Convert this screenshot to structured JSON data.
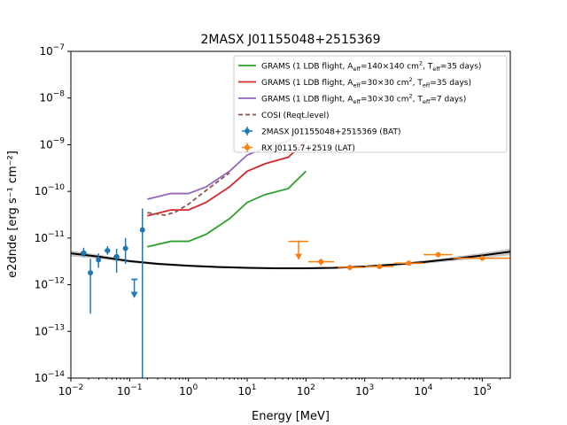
{
  "chart_data": {
    "type": "scatter",
    "title": "2MASX J01155048+2515369",
    "xlabel": "Energy [MeV]",
    "ylabel": "e2dnde [erg s⁻¹ cm⁻²]",
    "xscale": "log",
    "yscale": "log",
    "xlim": [
      0.01,
      300000
    ],
    "ylim": [
      1e-14,
      1e-07
    ],
    "grid": false,
    "legend_position": "top-right",
    "x_ticks": [
      {
        "value": 0.01,
        "base": "10",
        "exp": "−2"
      },
      {
        "value": 0.1,
        "base": "10",
        "exp": "−1"
      },
      {
        "value": 1,
        "base": "10",
        "exp": "0"
      },
      {
        "value": 10,
        "base": "10",
        "exp": "1"
      },
      {
        "value": 100,
        "base": "10",
        "exp": "2"
      },
      {
        "value": 1000,
        "base": "10",
        "exp": "3"
      },
      {
        "value": 10000,
        "base": "10",
        "exp": "4"
      },
      {
        "value": 100000,
        "base": "10",
        "exp": "5"
      }
    ],
    "y_ticks": [
      {
        "value": 1e-14,
        "base": "10",
        "exp": "−14"
      },
      {
        "value": 1e-13,
        "base": "10",
        "exp": "−13"
      },
      {
        "value": 1e-12,
        "base": "10",
        "exp": "−12"
      },
      {
        "value": 1e-11,
        "base": "10",
        "exp": "−11"
      },
      {
        "value": 1e-10,
        "base": "10",
        "exp": "−10"
      },
      {
        "value": 1e-09,
        "base": "10",
        "exp": "−9"
      },
      {
        "value": 1e-08,
        "base": "10",
        "exp": "−8"
      },
      {
        "value": 1e-07,
        "base": "10",
        "exp": "−7"
      }
    ],
    "lines": [
      {
        "name": "GRAMS (1 LDB flight, A_eff=140×140 cm², T_eff=35 days)",
        "color": "#2ca02c",
        "dash": "none",
        "x": [
          0.2,
          0.5,
          1,
          2,
          5,
          10,
          20,
          50,
          100
        ],
        "y": [
          6.5e-12,
          8.5e-12,
          8.5e-12,
          1.2e-11,
          2.6e-11,
          5.8e-11,
          8.5e-11,
          1.15e-10,
          2.7e-10
        ]
      },
      {
        "name": "GRAMS (1 LDB flight, A_eff=30×30 cm², T_eff=35 days)",
        "color": "#d62728",
        "dash": "none",
        "x": [
          0.2,
          0.5,
          1,
          2,
          5,
          10,
          20,
          50,
          100
        ],
        "y": [
          3e-11,
          4e-11,
          4e-11,
          5.8e-11,
          1.25e-10,
          2.7e-10,
          3.9e-10,
          5.4e-10,
          1.2e-09
        ]
      },
      {
        "name": "GRAMS (1 LDB flight, A_eff=30×30 cm², T_eff=7 days)",
        "color": "#9467bd",
        "dash": "none",
        "x": [
          0.2,
          0.5,
          1,
          2,
          5,
          10,
          20,
          50,
          100
        ],
        "y": [
          6.8e-11,
          9e-11,
          9e-11,
          1.25e-10,
          2.7e-10,
          6e-10,
          8.5e-10,
          1.2e-09,
          2.5e-09
        ]
      },
      {
        "name": "COSI (Reqt.level)",
        "color": "#8c564b",
        "dash": "5,3",
        "x": [
          0.2,
          0.4,
          0.6,
          1,
          2,
          5
        ],
        "y": [
          3.5e-11,
          3.1e-11,
          3.6e-11,
          5.3e-11,
          1.05e-10,
          2.5e-10
        ]
      }
    ],
    "model": {
      "color": "#000000",
      "band_color": "#b0b0b0",
      "x": [
        0.01,
        0.03,
        0.1,
        0.3,
        1,
        3,
        10,
        30,
        100,
        300,
        1000,
        3000,
        10000,
        30000,
        100000,
        300000
      ],
      "y": [
        4.7e-12,
        4e-12,
        3.2e-12,
        2.8e-12,
        2.55e-12,
        2.4e-12,
        2.3e-12,
        2.25e-12,
        2.25e-12,
        2.3e-12,
        2.45e-12,
        2.7e-12,
        3.05e-12,
        3.55e-12,
        4.25e-12,
        5.1e-12
      ],
      "band_frac": [
        0.14,
        0.1,
        0.07,
        0.06,
        0.05,
        0.05,
        0.05,
        0.05,
        0.05,
        0.05,
        0.05,
        0.06,
        0.08,
        0.1,
        0.13,
        0.16
      ]
    },
    "series": [
      {
        "name": "2MASX J01155048+2515369 (BAT)",
        "color": "#1f77b4",
        "points": [
          {
            "x": 0.0165,
            "y": 4.8e-12,
            "xlo": 0.0145,
            "xhi": 0.0185,
            "ylo": 3.9e-12,
            "yhi": 6.2e-12
          },
          {
            "x": 0.0215,
            "y": 1.8e-12,
            "xlo": 0.0195,
            "xhi": 0.0235,
            "ylo": 2.4e-13,
            "yhi": 3.6e-12
          },
          {
            "x": 0.0295,
            "y": 3.4e-12,
            "xlo": 0.027,
            "xhi": 0.032,
            "ylo": 2.3e-12,
            "yhi": 4.7e-12
          },
          {
            "x": 0.042,
            "y": 5.4e-12,
            "xlo": 0.037,
            "xhi": 0.047,
            "ylo": 4.4e-12,
            "yhi": 6.7e-12
          },
          {
            "x": 0.06,
            "y": 4e-12,
            "xlo": 0.053,
            "xhi": 0.068,
            "ylo": 1.8e-12,
            "yhi": 5.9e-12
          },
          {
            "x": 0.085,
            "y": 6e-12,
            "xlo": 0.077,
            "xhi": 0.094,
            "ylo": 2.8e-12,
            "yhi": 1e-11
          },
          {
            "x": 0.12,
            "y": 1.3e-12,
            "xlo": 0.107,
            "xhi": 0.136,
            "upper_limit": true
          },
          {
            "x": 0.165,
            "y": 1.5e-11,
            "xlo": 0.155,
            "xhi": 0.175,
            "ylo": 1e-14,
            "yhi": 4.3e-11
          }
        ]
      },
      {
        "name": "RX J0115.7+2519 (LAT)",
        "color": "#ff7f0e",
        "points": [
          {
            "x": 75,
            "y": 8.5e-12,
            "xlo": 50,
            "xhi": 110,
            "upper_limit": true
          },
          {
            "x": 180,
            "y": 3.1e-12,
            "xlo": 110,
            "xhi": 300,
            "ylo": 2.6e-12,
            "yhi": 3.6e-12
          },
          {
            "x": 560,
            "y": 2.35e-12,
            "xlo": 350,
            "xhi": 950,
            "ylo": 2.15e-12,
            "yhi": 2.6e-12
          },
          {
            "x": 1780,
            "y": 2.45e-12,
            "xlo": 1000,
            "xhi": 3100,
            "ylo": 2.25e-12,
            "yhi": 2.7e-12
          },
          {
            "x": 5620,
            "y": 2.9e-12,
            "xlo": 3200,
            "xhi": 9800,
            "ylo": 2.6e-12,
            "yhi": 3.2e-12
          },
          {
            "x": 17800,
            "y": 4.4e-12,
            "xlo": 10000,
            "xhi": 31000,
            "ylo": 4e-12,
            "yhi": 4.9e-12
          },
          {
            "x": 100000,
            "y": 3.7e-12,
            "xlo": 32000,
            "xhi": 300000,
            "ylo": 3.3e-12,
            "yhi": 4.1e-12
          }
        ]
      }
    ],
    "legend": [
      {
        "kind": "line",
        "color": "#2ca02c",
        "dash": "none",
        "parts": [
          {
            "t": "GRAMS (1 LDB flight, "
          },
          {
            "t": "A"
          },
          {
            "t": "eff",
            "sub": true
          },
          {
            "t": "=140×140 cm"
          },
          {
            "t": "2",
            "sup": true
          },
          {
            "t": ", "
          },
          {
            "t": "T"
          },
          {
            "t": "eff",
            "sub": true
          },
          {
            "t": "=35 days)"
          }
        ]
      },
      {
        "kind": "line",
        "color": "#d62728",
        "dash": "none",
        "parts": [
          {
            "t": "GRAMS (1 LDB flight, "
          },
          {
            "t": "A"
          },
          {
            "t": "eff",
            "sub": true
          },
          {
            "t": "=30×30 cm"
          },
          {
            "t": "2",
            "sup": true
          },
          {
            "t": ", "
          },
          {
            "t": "T"
          },
          {
            "t": "eff",
            "sub": true
          },
          {
            "t": "=35 days)"
          }
        ]
      },
      {
        "kind": "line",
        "color": "#9467bd",
        "dash": "none",
        "parts": [
          {
            "t": "GRAMS (1 LDB flight, "
          },
          {
            "t": "A"
          },
          {
            "t": "eff",
            "sub": true
          },
          {
            "t": "=30×30 cm"
          },
          {
            "t": "2",
            "sup": true
          },
          {
            "t": ", "
          },
          {
            "t": "T"
          },
          {
            "t": "eff",
            "sub": true
          },
          {
            "t": "=7 days)"
          }
        ]
      },
      {
        "kind": "line",
        "color": "#8c564b",
        "dash": "5,3",
        "parts": [
          {
            "t": "COSI (Reqt.level)"
          }
        ]
      },
      {
        "kind": "marker",
        "color": "#1f77b4",
        "parts": [
          {
            "t": "2MASX J01155048+2515369 (BAT)"
          }
        ]
      },
      {
        "kind": "marker",
        "color": "#ff7f0e",
        "parts": [
          {
            "t": "RX J0115.7+2519 (LAT)"
          }
        ]
      }
    ]
  }
}
